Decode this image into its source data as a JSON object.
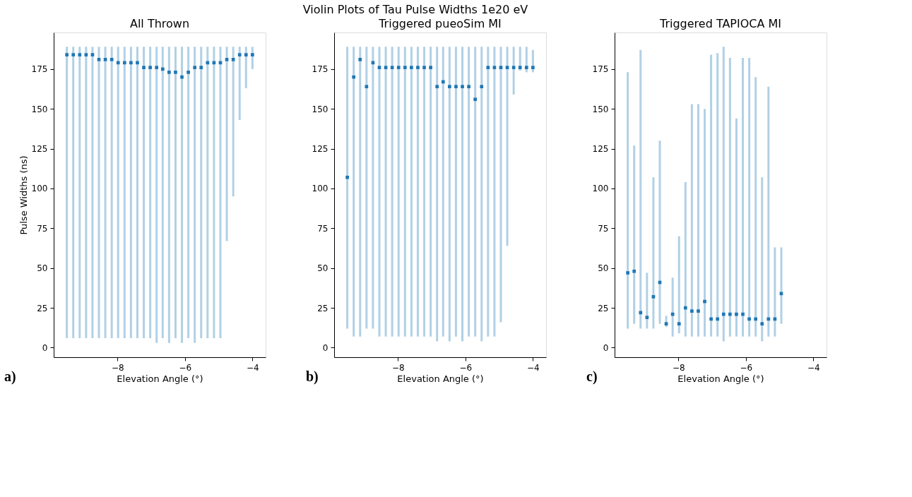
{
  "chart_data": [
    {
      "type": "scatter",
      "title": "All Thrown",
      "xlabel": "Elevation Angle (°)",
      "ylabel": "Pulse Widths (ns)",
      "marker": "square",
      "annotations": [
        "Violin Plots of Tau Pulse Widths 1e20 eV",
        "a)"
      ],
      "x": [
        -9.5,
        -9.31,
        -9.12,
        -8.93,
        -8.74,
        -8.55,
        -8.36,
        -8.17,
        -7.98,
        -7.79,
        -7.6,
        -7.41,
        -7.22,
        -7.03,
        -6.84,
        -6.66,
        -6.47,
        -6.28,
        -6.09,
        -5.9,
        -5.71,
        -5.52,
        -5.33,
        -5.14,
        -4.95,
        -4.76,
        -4.57,
        -4.38,
        -4.19,
        -4.0
      ],
      "series": [
        {
          "color": "#1f77b4",
          "values": [
            184,
            184,
            184,
            184,
            184,
            181,
            181,
            181,
            179,
            179,
            179,
            179,
            176,
            176,
            176,
            175,
            173,
            173,
            170,
            173,
            176,
            176,
            179,
            179,
            179,
            181,
            181,
            184,
            184,
            184
          ],
          "errors": [
            [
              6,
              189
            ],
            [
              6,
              189
            ],
            [
              6,
              189
            ],
            [
              6,
              189
            ],
            [
              6,
              189
            ],
            [
              6,
              189
            ],
            [
              6,
              189
            ],
            [
              6,
              189
            ],
            [
              6,
              189
            ],
            [
              6,
              189
            ],
            [
              6,
              189
            ],
            [
              6,
              189
            ],
            [
              6,
              189
            ],
            [
              6,
              189
            ],
            [
              3,
              189
            ],
            [
              6,
              189
            ],
            [
              3,
              189
            ],
            [
              6,
              189
            ],
            [
              3,
              189
            ],
            [
              6,
              189
            ],
            [
              3,
              189
            ],
            [
              6,
              189
            ],
            [
              6,
              189
            ],
            [
              6,
              189
            ],
            [
              6,
              189
            ],
            [
              67,
              189
            ],
            [
              95,
              189
            ],
            [
              143,
              189
            ],
            [
              163,
              189
            ],
            [
              175,
              189
            ]
          ]
        }
      ],
      "xlim": [
        -9.89,
        -3.61
      ],
      "ylim": [
        -6,
        198
      ],
      "xticks": [
        {
          "value": -8,
          "label": "−8"
        },
        {
          "value": -6,
          "label": "−6"
        },
        {
          "value": -4,
          "label": "−4"
        }
      ],
      "yticks": [
        0,
        25,
        50,
        75,
        100,
        125,
        150,
        175
      ],
      "grid": false
    },
    {
      "type": "scatter",
      "title": "Triggered pueoSim MI",
      "xlabel": "Elevation Angle (°)",
      "marker": "square",
      "annotations": [
        "b)"
      ],
      "x": [
        -9.5,
        -9.31,
        -9.12,
        -8.93,
        -8.74,
        -8.55,
        -8.36,
        -8.17,
        -7.98,
        -7.79,
        -7.6,
        -7.41,
        -7.22,
        -7.03,
        -6.84,
        -6.66,
        -6.47,
        -6.28,
        -6.09,
        -5.9,
        -5.71,
        -5.52,
        -5.33,
        -5.14,
        -4.95,
        -4.76,
        -4.57,
        -4.38,
        -4.19,
        -4.0
      ],
      "series": [
        {
          "color": "#1f77b4",
          "values": [
            107,
            170,
            181,
            164,
            179,
            176,
            176,
            176,
            176,
            176,
            176,
            176,
            176,
            176,
            164,
            167,
            164,
            164,
            164,
            164,
            156,
            164,
            176,
            176,
            176,
            176,
            176,
            176,
            176,
            176
          ],
          "errors": [
            [
              12,
              189
            ],
            [
              7,
              189
            ],
            [
              7,
              189
            ],
            [
              12,
              189
            ],
            [
              12,
              189
            ],
            [
              7,
              189
            ],
            [
              7,
              189
            ],
            [
              7,
              189
            ],
            [
              7,
              189
            ],
            [
              7,
              189
            ],
            [
              7,
              189
            ],
            [
              7,
              189
            ],
            [
              7,
              189
            ],
            [
              7,
              189
            ],
            [
              4,
              189
            ],
            [
              7,
              189
            ],
            [
              4,
              189
            ],
            [
              7,
              189
            ],
            [
              4,
              189
            ],
            [
              7,
              189
            ],
            [
              7,
              189
            ],
            [
              4,
              189
            ],
            [
              7,
              189
            ],
            [
              7,
              189
            ],
            [
              16,
              189
            ],
            [
              64,
              189
            ],
            [
              159,
              189
            ],
            [
              174,
              189
            ],
            [
              173,
              189
            ],
            [
              173,
              187
            ]
          ]
        }
      ],
      "xlim": [
        -9.89,
        -3.61
      ],
      "ylim": [
        -6,
        198
      ],
      "xticks": [
        {
          "value": -8,
          "label": "−8"
        },
        {
          "value": -6,
          "label": "−6"
        },
        {
          "value": -4,
          "label": "−4"
        }
      ],
      "yticks": [
        0,
        25,
        50,
        75,
        100,
        125,
        150,
        175
      ],
      "grid": false
    },
    {
      "type": "scatter",
      "title": "Triggered TAPIOCA MI",
      "xlabel": "Elevation Angle (°)",
      "marker": "square",
      "annotations": [
        "c)"
      ],
      "x": [
        -9.5,
        -9.31,
        -9.12,
        -8.93,
        -8.74,
        -8.55,
        -8.36,
        -8.17,
        -7.98,
        -7.79,
        -7.6,
        -7.41,
        -7.22,
        -7.03,
        -6.84,
        -6.66,
        -6.47,
        -6.28,
        -6.09,
        -5.9,
        -5.71,
        -5.52,
        -5.33,
        -5.14,
        -4.95
      ],
      "series": [
        {
          "color": "#1f77b4",
          "values": [
            47,
            48,
            22,
            19,
            32,
            41,
            15,
            21,
            15,
            25,
            23,
            23,
            29,
            18,
            18,
            21,
            21,
            21,
            21,
            18,
            18,
            15,
            18,
            18,
            34
          ],
          "errors": [
            [
              12,
              173
            ],
            [
              15,
              127
            ],
            [
              12,
              187
            ],
            [
              12,
              47
            ],
            [
              12,
              107
            ],
            [
              15,
              130
            ],
            [
              13,
              20
            ],
            [
              7,
              44
            ],
            [
              9,
              70
            ],
            [
              7,
              104
            ],
            [
              7,
              153
            ],
            [
              7,
              153
            ],
            [
              7,
              150
            ],
            [
              7,
              184
            ],
            [
              7,
              185
            ],
            [
              4,
              189
            ],
            [
              7,
              182
            ],
            [
              7,
              144
            ],
            [
              7,
              182
            ],
            [
              7,
              182
            ],
            [
              7,
              170
            ],
            [
              4,
              107
            ],
            [
              7,
              164
            ],
            [
              7,
              63
            ],
            [
              15,
              63
            ]
          ]
        }
      ],
      "xlim": [
        -9.89,
        -3.61
      ],
      "ylim": [
        -6,
        198
      ],
      "xticks": [
        {
          "value": -8,
          "label": "−8"
        },
        {
          "value": -6,
          "label": "−6"
        },
        {
          "value": -4,
          "label": "−4"
        }
      ],
      "yticks": [
        0,
        25,
        50,
        75,
        100,
        125,
        150,
        175
      ],
      "grid": false
    }
  ]
}
